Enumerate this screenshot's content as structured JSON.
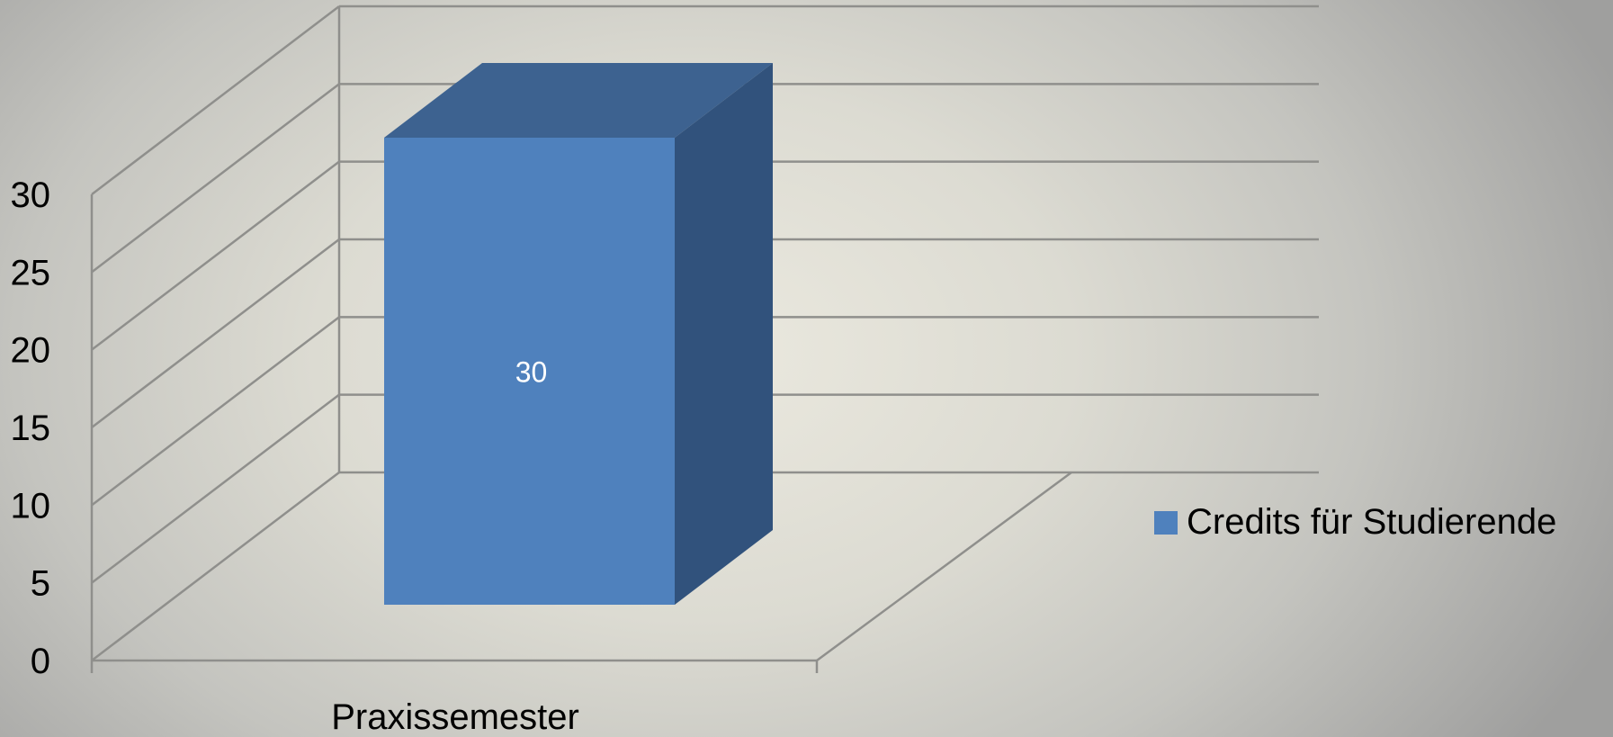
{
  "chart_data": {
    "type": "bar",
    "style": "3d-column",
    "categories": [
      "Praxissemester"
    ],
    "series": [
      {
        "name": "Credits für Studierende",
        "values": [
          30
        ],
        "data_labels": [
          "30"
        ],
        "color": "#4f81bd"
      }
    ],
    "y_ticks": [
      "0",
      "5",
      "10",
      "15",
      "20",
      "25",
      "30"
    ],
    "ylim": [
      0,
      30
    ],
    "grid": true,
    "legend": "right",
    "title": "",
    "xlabel": "",
    "ylabel": ""
  },
  "colors": {
    "bar_front": "#4f81bd",
    "bar_top": "#3d6290",
    "bar_side": "#31527c",
    "gridline": "#8f8f8c",
    "data_label": "#ffffff"
  }
}
